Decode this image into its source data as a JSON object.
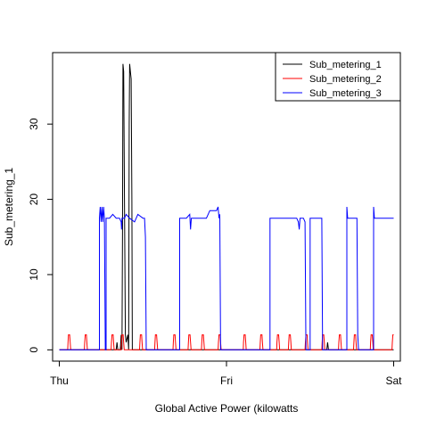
{
  "chart_data": {
    "type": "line",
    "title": "",
    "xlabel": "Global Active Power (kilowatts",
    "ylabel": "Sub_metering_1",
    "x_ticks": [
      {
        "label": "Thu",
        "value": 0
      },
      {
        "label": "Fri",
        "value": 1
      },
      {
        "label": "Sat",
        "value": 2
      }
    ],
    "y_ticks": [
      0,
      10,
      20,
      30
    ],
    "xlim": [
      -0.04,
      2.04
    ],
    "ylim": [
      -1.5,
      39.5
    ],
    "legend": {
      "position": "top-right"
    },
    "series": [
      {
        "name": "Sub_metering_1",
        "color": "#000000",
        "points": [
          [
            0.0,
            0
          ],
          [
            0.34,
            0
          ],
          [
            0.345,
            1
          ],
          [
            0.35,
            0
          ],
          [
            0.365,
            0
          ],
          [
            0.37,
            2
          ],
          [
            0.375,
            0
          ],
          [
            0.375,
            0
          ],
          [
            0.378,
            16
          ],
          [
            0.381,
            38
          ],
          [
            0.385,
            37
          ],
          [
            0.39,
            20
          ],
          [
            0.395,
            2
          ],
          [
            0.4,
            1
          ],
          [
            0.41,
            2
          ],
          [
            0.415,
            0
          ],
          [
            0.415,
            0
          ],
          [
            0.418,
            30
          ],
          [
            0.421,
            38
          ],
          [
            0.425,
            37
          ],
          [
            0.43,
            36
          ],
          [
            0.434,
            20
          ],
          [
            0.437,
            0
          ],
          [
            0.44,
            0
          ],
          [
            0.45,
            0
          ],
          [
            1.0,
            0
          ],
          [
            1.6,
            0
          ],
          [
            1.605,
            1
          ],
          [
            1.61,
            0
          ],
          [
            2.0,
            0
          ]
        ]
      },
      {
        "name": "Sub_metering_2",
        "color": "#ff0000",
        "points": [
          [
            0.0,
            0
          ],
          [
            0.05,
            0
          ],
          [
            0.052,
            1
          ],
          [
            0.055,
            2
          ],
          [
            0.062,
            2
          ],
          [
            0.065,
            1
          ],
          [
            0.068,
            0
          ],
          [
            0.15,
            0
          ],
          [
            0.152,
            1
          ],
          [
            0.155,
            2
          ],
          [
            0.162,
            2
          ],
          [
            0.165,
            1
          ],
          [
            0.168,
            0
          ],
          [
            0.31,
            0
          ],
          [
            0.312,
            1
          ],
          [
            0.315,
            2
          ],
          [
            0.322,
            2
          ],
          [
            0.325,
            1
          ],
          [
            0.328,
            0
          ],
          [
            0.37,
            0
          ],
          [
            0.372,
            1
          ],
          [
            0.375,
            2
          ],
          [
            0.382,
            2
          ],
          [
            0.385,
            1
          ],
          [
            0.388,
            0
          ],
          [
            0.48,
            0
          ],
          [
            0.482,
            1
          ],
          [
            0.485,
            2
          ],
          [
            0.492,
            2
          ],
          [
            0.495,
            1
          ],
          [
            0.498,
            0
          ],
          [
            0.57,
            0
          ],
          [
            0.572,
            1
          ],
          [
            0.575,
            2
          ],
          [
            0.582,
            2
          ],
          [
            0.585,
            1
          ],
          [
            0.588,
            0
          ],
          [
            0.68,
            0
          ],
          [
            0.682,
            1
          ],
          [
            0.685,
            2
          ],
          [
            0.692,
            2
          ],
          [
            0.695,
            1
          ],
          [
            0.698,
            0
          ],
          [
            0.77,
            0
          ],
          [
            0.772,
            1
          ],
          [
            0.775,
            2
          ],
          [
            0.782,
            2
          ],
          [
            0.785,
            1
          ],
          [
            0.788,
            0
          ],
          [
            0.85,
            0
          ],
          [
            0.852,
            1
          ],
          [
            0.855,
            2
          ],
          [
            0.862,
            2
          ],
          [
            0.865,
            1
          ],
          [
            0.868,
            0
          ],
          [
            0.95,
            0
          ],
          [
            0.952,
            1
          ],
          [
            0.955,
            2
          ],
          [
            0.962,
            2
          ],
          [
            0.965,
            1
          ],
          [
            0.968,
            0
          ],
          [
            1.1,
            0
          ],
          [
            1.102,
            1
          ],
          [
            1.105,
            2
          ],
          [
            1.112,
            2
          ],
          [
            1.115,
            1
          ],
          [
            1.118,
            0
          ],
          [
            1.2,
            0
          ],
          [
            1.202,
            1
          ],
          [
            1.205,
            2
          ],
          [
            1.212,
            2
          ],
          [
            1.215,
            1
          ],
          [
            1.218,
            0
          ],
          [
            1.3,
            0
          ],
          [
            1.302,
            1
          ],
          [
            1.305,
            2
          ],
          [
            1.312,
            2
          ],
          [
            1.315,
            1
          ],
          [
            1.318,
            0
          ],
          [
            1.37,
            0
          ],
          [
            1.372,
            1
          ],
          [
            1.375,
            2
          ],
          [
            1.382,
            2
          ],
          [
            1.385,
            1
          ],
          [
            1.388,
            0
          ],
          [
            1.47,
            0
          ],
          [
            1.472,
            1
          ],
          [
            1.475,
            2
          ],
          [
            1.482,
            2
          ],
          [
            1.485,
            1
          ],
          [
            1.488,
            0
          ],
          [
            1.57,
            0
          ],
          [
            1.572,
            1
          ],
          [
            1.575,
            2
          ],
          [
            1.582,
            2
          ],
          [
            1.585,
            1
          ],
          [
            1.588,
            0
          ],
          [
            1.67,
            0
          ],
          [
            1.672,
            1
          ],
          [
            1.675,
            2
          ],
          [
            1.682,
            2
          ],
          [
            1.685,
            1
          ],
          [
            1.688,
            0
          ],
          [
            1.76,
            0
          ],
          [
            1.762,
            1
          ],
          [
            1.765,
            2
          ],
          [
            1.772,
            2
          ],
          [
            1.775,
            1
          ],
          [
            1.778,
            0
          ],
          [
            1.86,
            0
          ],
          [
            1.862,
            1
          ],
          [
            1.865,
            2
          ],
          [
            1.872,
            2
          ],
          [
            1.875,
            1
          ],
          [
            1.878,
            0
          ],
          [
            1.99,
            0
          ],
          [
            1.992,
            1
          ],
          [
            1.995,
            2
          ],
          [
            2.0,
            2
          ]
        ]
      },
      {
        "name": "Sub_metering_3",
        "color": "#0000ff",
        "points": [
          [
            0.0,
            0
          ],
          [
            0.24,
            0
          ],
          [
            0.24,
            17.5
          ],
          [
            0.245,
            19
          ],
          [
            0.25,
            17
          ],
          [
            0.255,
            19
          ],
          [
            0.26,
            17
          ],
          [
            0.265,
            19
          ],
          [
            0.27,
            17.5
          ],
          [
            0.275,
            0
          ],
          [
            0.28,
            0
          ],
          [
            0.28,
            17.5
          ],
          [
            0.3,
            17.5
          ],
          [
            0.32,
            18
          ],
          [
            0.34,
            17.5
          ],
          [
            0.36,
            17.5
          ],
          [
            0.37,
            17
          ],
          [
            0.372,
            16
          ],
          [
            0.375,
            17.5
          ],
          [
            0.39,
            17.5
          ],
          [
            0.4,
            18
          ],
          [
            0.42,
            17.5
          ],
          [
            0.45,
            17
          ],
          [
            0.47,
            18
          ],
          [
            0.5,
            17.5
          ],
          [
            0.51,
            17.5
          ],
          [
            0.515,
            15
          ],
          [
            0.52,
            0
          ],
          [
            0.72,
            0
          ],
          [
            0.72,
            17.5
          ],
          [
            0.76,
            17.5
          ],
          [
            0.78,
            18
          ],
          [
            0.785,
            16
          ],
          [
            0.79,
            17.5
          ],
          [
            0.83,
            17.5
          ],
          [
            0.88,
            17.5
          ],
          [
            0.9,
            18.5
          ],
          [
            0.94,
            18.5
          ],
          [
            0.95,
            19
          ],
          [
            0.955,
            17.5
          ],
          [
            0.96,
            18
          ],
          [
            0.965,
            0
          ],
          [
            1.26,
            0
          ],
          [
            1.26,
            17.5
          ],
          [
            1.3,
            17.5
          ],
          [
            1.34,
            17.5
          ],
          [
            1.37,
            17.5
          ],
          [
            1.39,
            17.5
          ],
          [
            1.42,
            17.5
          ],
          [
            1.43,
            17
          ],
          [
            1.435,
            16
          ],
          [
            1.44,
            17.5
          ],
          [
            1.46,
            17.5
          ],
          [
            1.47,
            17
          ],
          [
            1.475,
            0
          ],
          [
            1.5,
            0
          ],
          [
            1.5,
            17.5
          ],
          [
            1.53,
            17.5
          ],
          [
            1.56,
            17.5
          ],
          [
            1.57,
            17.5
          ],
          [
            1.575,
            0
          ],
          [
            1.72,
            0
          ],
          [
            1.72,
            19
          ],
          [
            1.725,
            17.5
          ],
          [
            1.76,
            17.5
          ],
          [
            1.78,
            17.5
          ],
          [
            1.785,
            2
          ],
          [
            1.79,
            0
          ],
          [
            1.88,
            0
          ],
          [
            1.88,
            19
          ],
          [
            1.885,
            17.5
          ],
          [
            1.92,
            17.5
          ],
          [
            1.96,
            17.5
          ],
          [
            2.0,
            17.5
          ]
        ]
      }
    ]
  }
}
